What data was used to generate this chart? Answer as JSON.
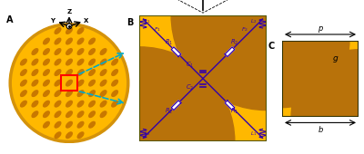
{
  "bg_color": "#ffffff",
  "gold_light": "#FFB800",
  "gold_dark": "#B8720A",
  "gold_ring": "#D4920A",
  "patch_color": "#C87800",
  "red_box": "#FF0000",
  "blue_arrow": "#00AACC",
  "line_color": "#3300AA",
  "label_A": "A",
  "label_B": "B",
  "label_C": "C"
}
